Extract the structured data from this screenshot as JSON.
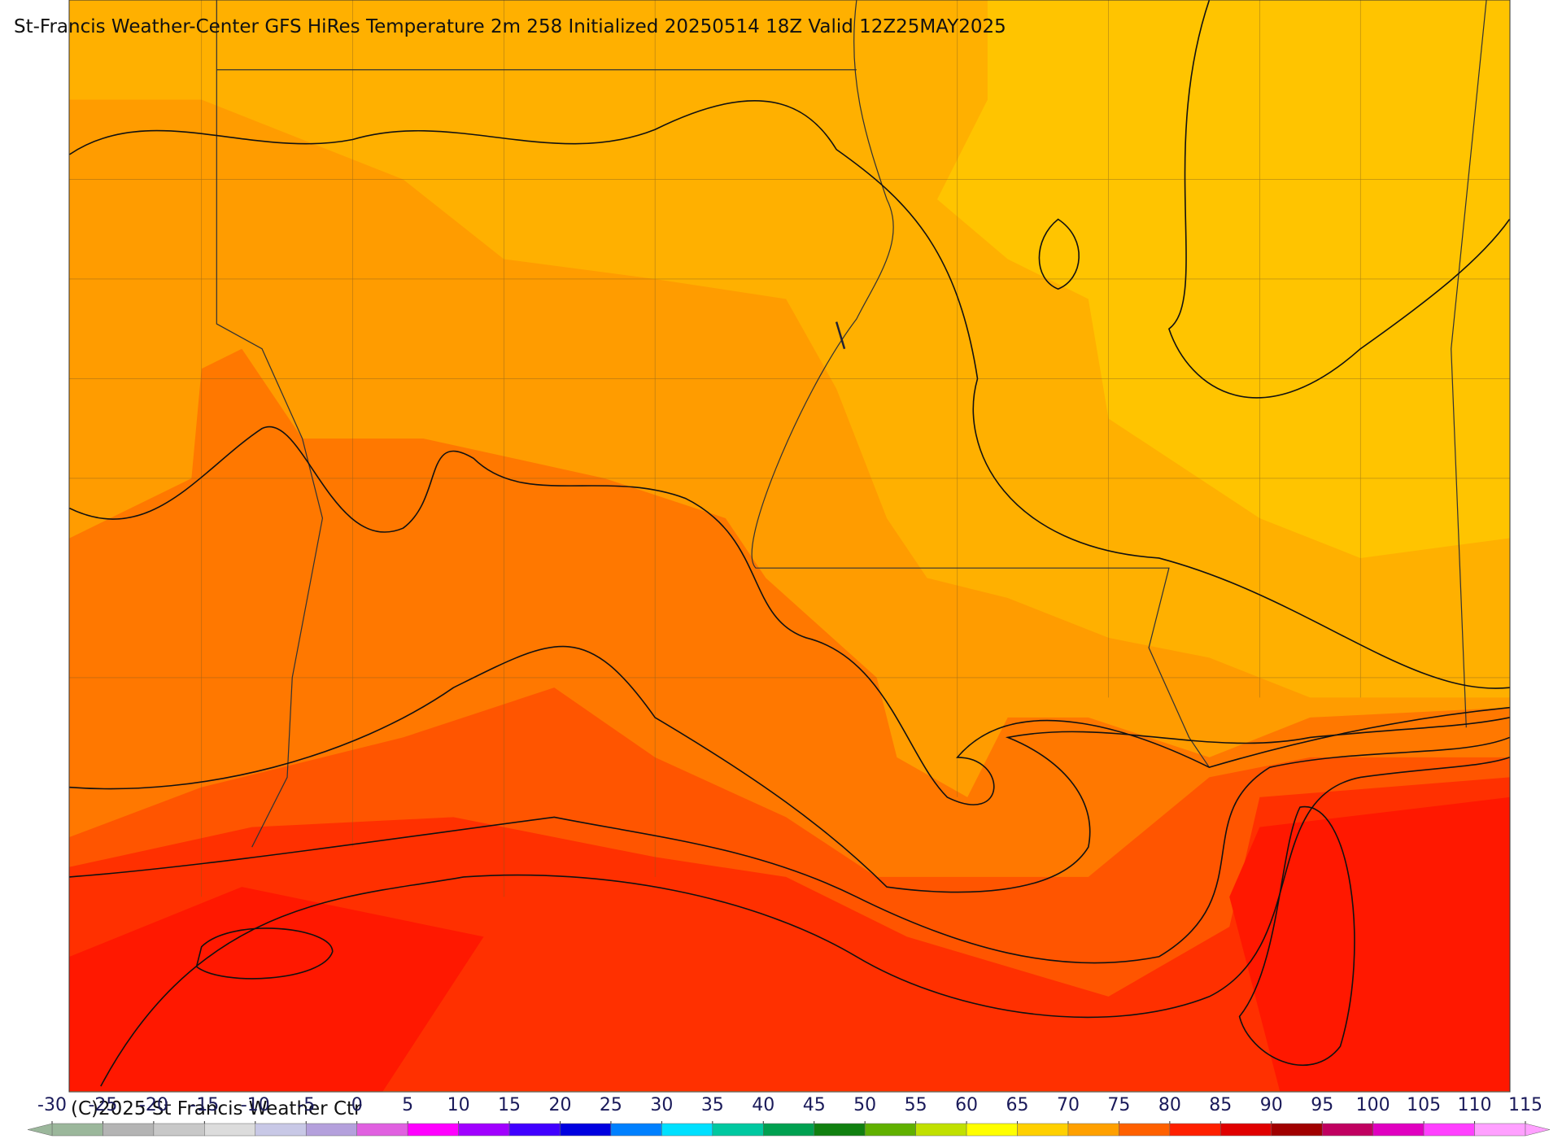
{
  "title": "St-Francis Weather-Center GFS HiRes Temperature 2m  258 Initialized 20250514 18Z Valid 12Z25MAY2025",
  "credit": "(C)2025 St Francis Weather Ctr",
  "colorbar": {
    "ticks": [
      -30,
      -25,
      -20,
      -15,
      -10,
      -5,
      0,
      5,
      10,
      15,
      20,
      25,
      30,
      35,
      40,
      45,
      50,
      55,
      60,
      65,
      70,
      75,
      80,
      85,
      90,
      95,
      100,
      105,
      110,
      115
    ],
    "colors": [
      "#9bb79b",
      "#b4b4b4",
      "#c8c8c8",
      "#dcdcdc",
      "#c8c8e6",
      "#b4a0dc",
      "#e060e0",
      "#ff00ff",
      "#a000ff",
      "#4000ff",
      "#0000e0",
      "#0080ff",
      "#00e0ff",
      "#00c8a0",
      "#00a050",
      "#108010",
      "#60b000",
      "#c0e000",
      "#ffff00",
      "#ffd000",
      "#ffa000",
      "#ff6000",
      "#ff2000",
      "#e00000",
      "#a00000",
      "#c00060",
      "#e000c0",
      "#ff40ff",
      "#ffa0ff"
    ]
  }
}
